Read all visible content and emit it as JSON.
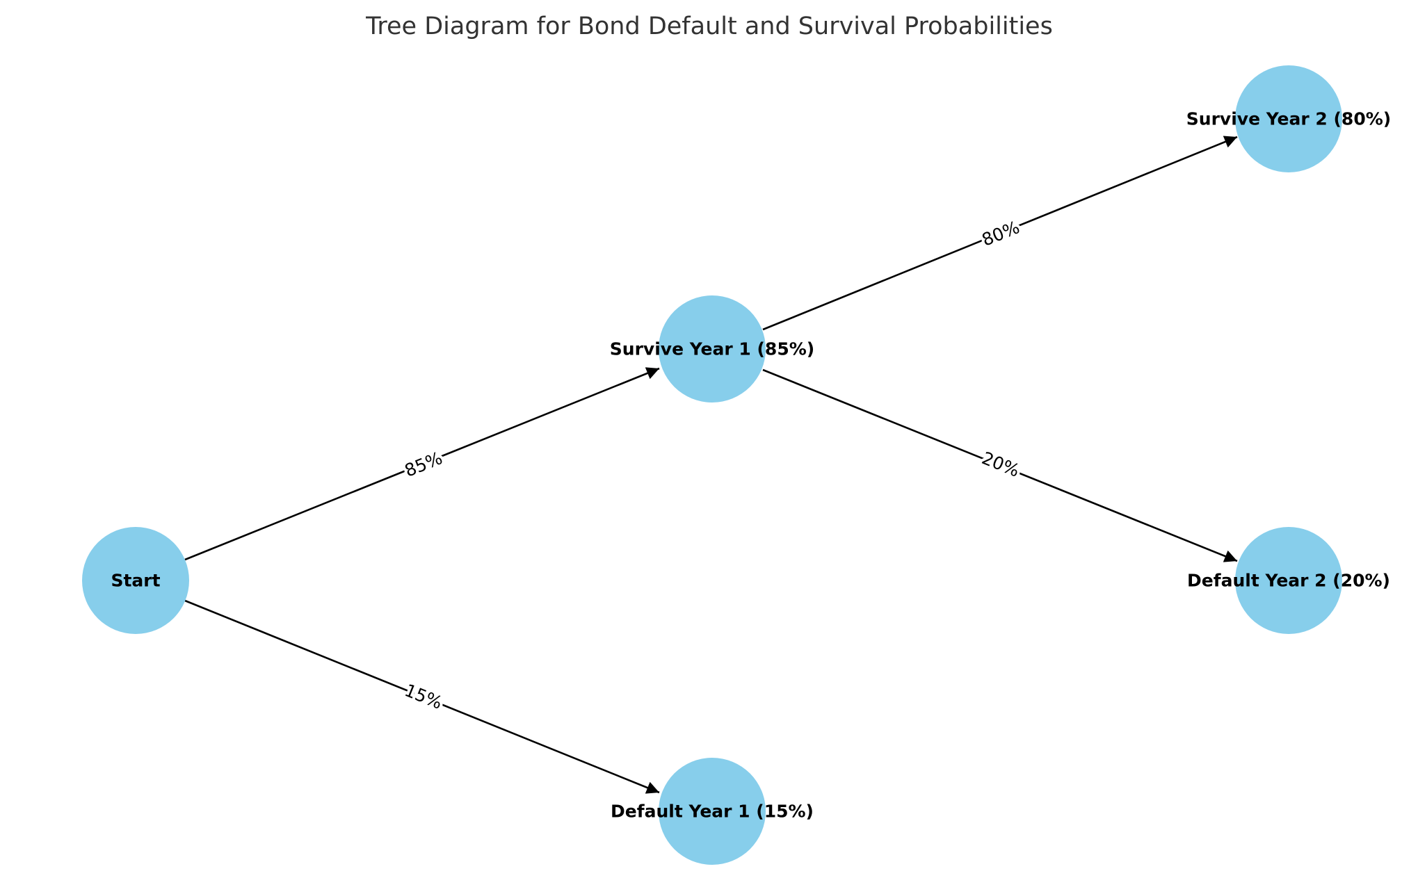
{
  "title": "Tree Diagram for Bond Default and Survival Probabilities",
  "node_color": "#87CEEB",
  "edge_color": "#000000",
  "nodes": [
    {
      "id": "start",
      "label": "Start"
    },
    {
      "id": "s1",
      "label": "Survive Year 1 (85%)"
    },
    {
      "id": "d1",
      "label": "Default Year 1 (15%)"
    },
    {
      "id": "s2",
      "label": "Survive Year 2 (80%)"
    },
    {
      "id": "d2",
      "label": "Default Year 2 (20%)"
    }
  ],
  "edges": [
    {
      "from": "start",
      "to": "s1",
      "label": "85%"
    },
    {
      "from": "start",
      "to": "d1",
      "label": "15%"
    },
    {
      "from": "s1",
      "to": "s2",
      "label": "80%"
    },
    {
      "from": "s1",
      "to": "d2",
      "label": "20%"
    }
  ]
}
